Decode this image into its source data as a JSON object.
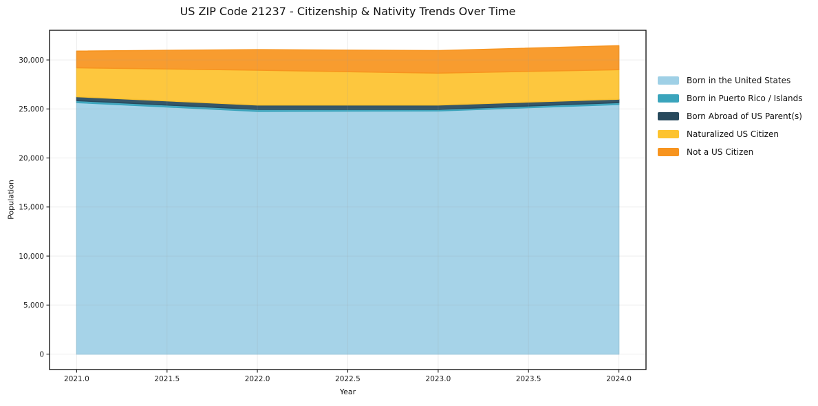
{
  "chart_data": {
    "type": "area",
    "stacked": true,
    "title": "US ZIP Code 21237 - Citizenship & Nativity Trends Over Time",
    "xlabel": "Year",
    "ylabel": "Population",
    "x": [
      2021,
      2022,
      2023,
      2024
    ],
    "series": [
      {
        "name": "Born in the United States",
        "color": "#9fd0e6",
        "values": [
          25650,
          24750,
          24800,
          25450
        ]
      },
      {
        "name": "Born in Puerto Rico / Islands",
        "color": "#3aa4bc",
        "values": [
          200,
          200,
          150,
          200
        ]
      },
      {
        "name": "Born Abroad of US Parent(s)",
        "color": "#27495c",
        "values": [
          400,
          450,
          450,
          350
        ]
      },
      {
        "name": "Naturalized US Citizen",
        "color": "#fdc32f",
        "values": [
          2950,
          3550,
          3250,
          3000
        ]
      },
      {
        "name": "Not a US Citizen",
        "color": "#f7941f",
        "values": [
          1700,
          2100,
          2300,
          2450
        ]
      }
    ],
    "stack_totals": [
      30900,
      31050,
      30950,
      31450
    ],
    "xticks": {
      "values": [
        2021.0,
        2021.5,
        2022.0,
        2022.5,
        2023.0,
        2023.5,
        2024.0
      ],
      "labels": [
        "2021.0",
        "2021.5",
        "2022.0",
        "2022.5",
        "2023.0",
        "2023.5",
        "2024.0"
      ]
    },
    "yticks": {
      "values": [
        0,
        5000,
        10000,
        15000,
        20000,
        25000,
        30000
      ],
      "labels": [
        "0",
        "5,000",
        "10,000",
        "15,000",
        "20,000",
        "25,000",
        "30,000"
      ]
    },
    "xlim": [
      2020.85,
      2024.15
    ],
    "ylim": [
      -1572,
      33022
    ],
    "grid": true,
    "legend_position": "right-outside",
    "spine_color": "#1a1a1a",
    "grid_color": "#999999"
  }
}
